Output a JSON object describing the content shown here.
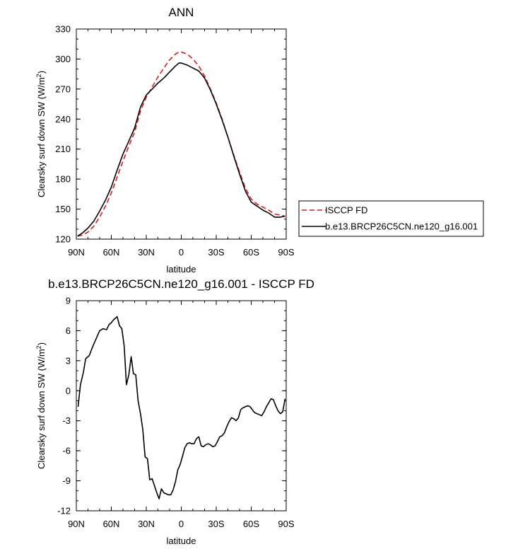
{
  "chart_data": [
    {
      "type": "line",
      "title": "ANN",
      "xlabel": "latitude",
      "ylabel": "Clearsky surf down SW (W/m",
      "ylabel_sup": "2",
      "ylabel_tail": ")",
      "xlim": [
        90,
        -90
      ],
      "ylim": [
        120,
        330
      ],
      "x_ticks": [
        90,
        60,
        30,
        0,
        -30,
        -60,
        -90
      ],
      "x_tick_labels": [
        "90N",
        "60N",
        "30N",
        "0",
        "30S",
        "60S",
        "90S"
      ],
      "y_ticks": [
        120,
        150,
        180,
        210,
        240,
        270,
        300,
        330
      ],
      "y_tick_labels": [
        "120",
        "150",
        "180",
        "210",
        "240",
        "270",
        "300",
        "330"
      ],
      "legend_position": "right",
      "series": [
        {
          "name": "ISCCP FD",
          "color": "#e8141c",
          "dash": "dashed",
          "x": [
            89,
            85,
            80,
            75,
            70,
            65,
            60,
            55,
            50,
            45,
            40,
            35,
            30,
            25,
            20,
            15,
            10,
            5,
            2,
            0,
            -5,
            -10,
            -15,
            -20,
            -25,
            -30,
            -35,
            -40,
            -45,
            -50,
            -55,
            -60,
            -65,
            -70,
            -75,
            -80,
            -85,
            -89
          ],
          "y": [
            123,
            124,
            127,
            133,
            142,
            153,
            166,
            182,
            198,
            213,
            227,
            248,
            262,
            272,
            282,
            291,
            299,
            305,
            307,
            307,
            305,
            300,
            293,
            283,
            270,
            256,
            240,
            222,
            204,
            187,
            171,
            160,
            155,
            152,
            149,
            145,
            144,
            143
          ]
        },
        {
          "name": "b.e13.BRCP26C5CN.ne120_g16.001",
          "color": "#000000",
          "dash": "solid",
          "x": [
            89,
            85,
            80,
            75,
            70,
            65,
            60,
            55,
            50,
            45,
            40,
            35,
            30,
            25,
            20,
            15,
            10,
            5,
            2,
            0,
            -5,
            -10,
            -15,
            -20,
            -25,
            -30,
            -35,
            -40,
            -45,
            -50,
            -55,
            -60,
            -65,
            -70,
            -75,
            -80,
            -85,
            -89
          ],
          "y": [
            123,
            126,
            131,
            138,
            148,
            159,
            172,
            189,
            205,
            218,
            231,
            252,
            264,
            270,
            276,
            281,
            287,
            293,
            296,
            296,
            294,
            291,
            288,
            281,
            269,
            255,
            239,
            222,
            203,
            185,
            168,
            157,
            153,
            149,
            146,
            142,
            142,
            143
          ]
        }
      ]
    },
    {
      "type": "line",
      "title": "b.e13.BRCP26C5CN.ne120_g16.001 - ISCCP FD",
      "xlabel": "latitude",
      "ylabel": "Clearsky surf down SW (W/m",
      "ylabel_sup": "2",
      "ylabel_tail": ")",
      "xlim": [
        90,
        -90
      ],
      "ylim": [
        -12,
        9
      ],
      "x_ticks": [
        90,
        60,
        30,
        0,
        -30,
        -60,
        -90
      ],
      "x_tick_labels": [
        "90N",
        "60N",
        "30N",
        "0",
        "30S",
        "60S",
        "90S"
      ],
      "y_ticks": [
        -12,
        -9,
        -6,
        -3,
        0,
        3,
        6,
        9
      ],
      "y_tick_labels": [
        "-12",
        "-9",
        "-6",
        "-3",
        "0",
        "3",
        "6",
        "9"
      ],
      "series": [
        {
          "color": "#000000",
          "dash": "solid",
          "x": [
            88.5,
            86.5,
            84,
            82,
            79,
            76,
            73,
            70,
            67,
            64,
            62,
            60,
            58,
            55,
            53,
            51,
            49,
            47,
            45,
            43,
            41,
            39,
            37,
            35,
            33,
            31,
            29,
            27,
            25,
            23,
            21,
            19,
            17,
            15,
            13,
            11,
            9,
            7,
            5,
            3,
            1,
            -1,
            -3,
            -5,
            -7,
            -9,
            -11,
            -13,
            -15,
            -17,
            -19,
            -21,
            -23,
            -25,
            -27,
            -29,
            -31,
            -33,
            -35,
            -37,
            -39,
            -41,
            -43,
            -45,
            -47,
            -49,
            -51,
            -53,
            -55,
            -57,
            -59,
            -61,
            -63,
            -65,
            -67,
            -69,
            -71,
            -73,
            -75,
            -77,
            -79,
            -81,
            -83,
            -85,
            -87,
            -89
          ],
          "y": [
            -1.6,
            0.6,
            1.8,
            3.2,
            3.5,
            4.4,
            5.2,
            6.0,
            6.2,
            6.1,
            6.6,
            6.8,
            7.1,
            7.4,
            6.5,
            6.2,
            4.5,
            0.6,
            1.6,
            3.4,
            1.7,
            1.6,
            -1.0,
            -2.3,
            -3.9,
            -6.6,
            -6.8,
            -8.9,
            -8.8,
            -9.5,
            -10.2,
            -10.8,
            -9.8,
            -10.2,
            -10.3,
            -10.4,
            -10.4,
            -9.9,
            -9.1,
            -7.9,
            -7.4,
            -6.6,
            -5.7,
            -5.3,
            -5.2,
            -5.3,
            -5.3,
            -4.8,
            -4.6,
            -5.5,
            -5.6,
            -5.4,
            -5.3,
            -5.4,
            -5.6,
            -5.5,
            -5.1,
            -4.6,
            -4.5,
            -4.2,
            -3.6,
            -3.1,
            -2.7,
            -2.8,
            -3.0,
            -2.7,
            -1.9,
            -1.7,
            -1.6,
            -1.5,
            -1.6,
            -1.9,
            -2.2,
            -2.3,
            -2.4,
            -2.5,
            -2.1,
            -1.6,
            -1.2,
            -0.8,
            -0.9,
            -1.5,
            -2.0,
            -2.3,
            -2.1,
            -0.8
          ]
        }
      ]
    }
  ]
}
